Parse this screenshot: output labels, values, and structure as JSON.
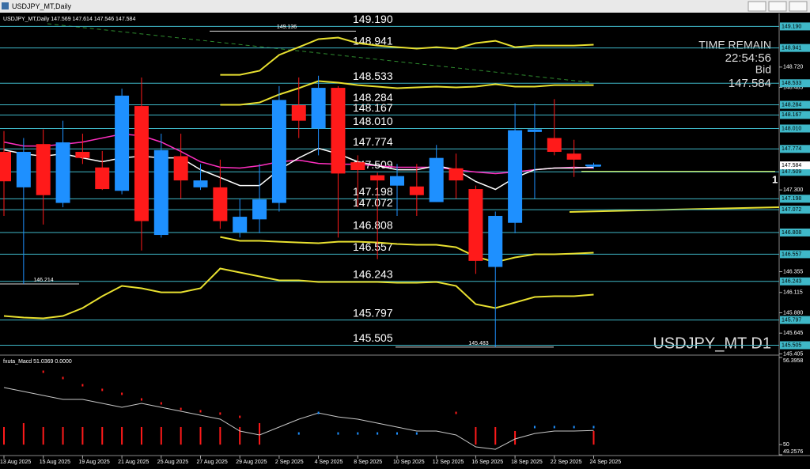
{
  "window_title": "USDJPY_MT,Daily",
  "chart_data": [
    {
      "type": "candlestick",
      "header": "USDJPY_MT,Daily 147.569 147.614 147.546 147.584",
      "categories": [
        "13 Aug 2025",
        null,
        "15 Aug 2025",
        null,
        "19 Aug 2025",
        null,
        "21 Aug 2025",
        null,
        "25 Aug 2025",
        null,
        "27 Aug 2025",
        null,
        "29 Aug 2025",
        null,
        "2 Sep 2025",
        null,
        "4 Sep 2025",
        null,
        "8 Sep 2025",
        null,
        "10 Sep 2025",
        null,
        "12 Sep 2025",
        null,
        "16 Sep 2025",
        null,
        "18 Sep 2025",
        null,
        "22 Sep 2025",
        null,
        "24 Sep 2025"
      ],
      "open": [
        147.74,
        147.33,
        147.83,
        147.15,
        147.74,
        147.56,
        147.29,
        148.27,
        146.78,
        147.69,
        147.33,
        147.33,
        146.81,
        146.96,
        147.15,
        148.28,
        148.01,
        148.48,
        147.62,
        147.47,
        147.35,
        147.34,
        147.16,
        147.55,
        147.31,
        146.41,
        146.92,
        147.97,
        147.9,
        147.72,
        147.569
      ],
      "high": [
        147.98,
        147.9,
        148.0,
        148.1,
        147.95,
        147.75,
        148.47,
        148.6,
        147.95,
        147.95,
        147.6,
        147.65,
        147.2,
        147.6,
        148.5,
        148.6,
        148.62,
        148.5,
        147.7,
        147.5,
        147.6,
        147.6,
        147.82,
        147.72,
        147.35,
        147.05,
        148.3,
        148.3,
        148.35,
        147.88,
        147.614
      ],
      "low": [
        147.0,
        146.214,
        146.9,
        147.1,
        147.6,
        147.3,
        147.25,
        146.6,
        146.75,
        147.2,
        147.3,
        146.85,
        146.75,
        146.8,
        147.05,
        147.9,
        147.7,
        146.75,
        147.1,
        146.5,
        147.0,
        147.0,
        147.16,
        147.2,
        146.33,
        145.483,
        146.8,
        147.2,
        147.7,
        147.45,
        147.546
      ],
      "close": [
        147.4,
        147.74,
        147.24,
        147.85,
        147.67,
        147.31,
        148.39,
        146.94,
        147.76,
        147.41,
        147.41,
        146.94,
        146.99,
        147.19,
        148.34,
        148.1,
        148.48,
        147.49,
        147.53,
        147.41,
        147.46,
        147.24,
        147.67,
        147.41,
        146.48,
        147.0,
        147.99,
        148.0,
        147.74,
        147.65,
        147.584
      ],
      "up_color": "#1e90ff",
      "down_color": "#ff1a1a",
      "ylim": [
        145.4,
        149.34
      ],
      "yticks": [
        {
          "value": 148.72,
          "label": "148.720"
        },
        148.485,
        {
          "value": 147.3,
          "label": "147.300"
        },
        146.355,
        146.115,
        {
          "value": 145.88,
          "label": "145.880"
        },
        145.645,
        145.405
      ],
      "levels": [
        {
          "value": 149.19,
          "label": "149.190"
        },
        148.941,
        148.533,
        148.284,
        148.167,
        {
          "value": 148.01,
          "label": "148.010"
        },
        147.774,
        147.509,
        147.198,
        147.072,
        146.808,
        146.557,
        146.243,
        145.797,
        145.505
      ],
      "level_color": "#3fb8c8",
      "extremes": [
        149.136,
        146.214,
        145.483
      ],
      "lines": [
        {
          "color": "#ff2fc0",
          "values": [
            147.854,
            147.808,
            147.808,
            147.827,
            147.854,
            147.9,
            147.946,
            147.927,
            147.854,
            147.744,
            147.626,
            147.562,
            147.553,
            147.58,
            147.626,
            147.644,
            147.607,
            147.598,
            147.598,
            147.58,
            147.562,
            147.562,
            147.562,
            147.534,
            147.507,
            147.489,
            147.507,
            147.534,
            147.553,
            147.562,
            147.553
          ]
        },
        {
          "color": "#ffffff",
          "values": [
            147.763,
            147.717,
            147.69,
            147.717,
            147.671,
            147.626,
            147.671,
            147.69,
            147.671,
            147.671,
            147.534,
            147.443,
            147.351,
            147.351,
            147.534,
            147.671,
            147.781,
            147.717,
            147.626,
            147.58,
            147.534,
            147.534,
            147.58,
            147.534,
            147.397,
            147.306,
            147.443,
            147.534,
            147.553,
            147.553,
            147.562
          ]
        },
        {
          "color": "#e8e030",
          "values": [
            null,
            null,
            null,
            null,
            null,
            null,
            null,
            null,
            null,
            null,
            null,
            148.631,
            148.631,
            148.677,
            148.86,
            148.951,
            149.043,
            149.061,
            148.997,
            148.969,
            148.951,
            148.933,
            148.951,
            148.933,
            148.997,
            149.024,
            148.951,
            148.969,
            148.969,
            148.969,
            148.979
          ]
        },
        {
          "color": "#e8e030",
          "values": [
            null,
            null,
            null,
            null,
            null,
            null,
            null,
            null,
            null,
            null,
            null,
            148.284,
            148.284,
            148.311,
            148.403,
            148.476,
            148.558,
            148.54,
            148.512,
            148.494,
            148.476,
            148.485,
            148.494,
            148.485,
            148.494,
            148.522,
            148.494,
            148.494,
            148.512,
            148.512,
            148.512
          ]
        },
        {
          "color": "#e8e030",
          "values": [
            null,
            null,
            null,
            null,
            null,
            null,
            null,
            null,
            null,
            null,
            null,
            146.757,
            146.712,
            146.712,
            146.702,
            146.693,
            146.684,
            146.702,
            146.702,
            146.693,
            146.675,
            146.666,
            146.666,
            146.638,
            146.529,
            146.465,
            146.52,
            146.556,
            146.556,
            146.565,
            146.575
          ]
        },
        {
          "color": "#e8e030",
          "values": [
            145.843,
            145.825,
            145.816,
            145.843,
            145.935,
            146.072,
            146.191,
            146.163,
            146.117,
            146.117,
            146.163,
            146.392,
            146.346,
            146.3,
            146.255,
            146.255,
            146.236,
            146.236,
            146.236,
            146.236,
            146.227,
            146.227,
            146.236,
            146.191,
            145.98,
            145.935,
            145.999,
            146.063,
            146.072,
            146.072,
            146.09
          ]
        }
      ],
      "bid": 147.584,
      "time_label": "TIME REMAIN",
      "time": "22:54:56",
      "bid_label": "Bid",
      "symbol_label": "USDJPY_MT D1",
      "marker": "1"
    },
    {
      "type": "oscillator",
      "title": "fxuta_Macd 51.0369 0.0000",
      "ylim": [
        49.2576,
        56.3958
      ],
      "yticks": [
        56.3958,
        50,
        49.2576
      ],
      "baseline": 50,
      "histogram": {
        "color": "#ff1a1a",
        "values": [
          51.29,
          51.58,
          51.29,
          51.29,
          51.29,
          51.29,
          51.29,
          51.29,
          51.29,
          51.29,
          51.29,
          51.29,
          51.29,
          51.58,
          null,
          null,
          null,
          null,
          null,
          null,
          null,
          null,
          null,
          null,
          51.29,
          51.29,
          51.0,
          null,
          null,
          null,
          51.0
        ]
      },
      "series": [
        {
          "color": "#c8c8c8",
          "values": [
            54.19,
            53.9,
            53.61,
            53.32,
            53.32,
            53.03,
            52.74,
            53.03,
            52.74,
            52.45,
            52.16,
            51.87,
            51.0,
            50.71,
            51.29,
            51.87,
            52.33,
            52.04,
            51.87,
            51.58,
            51.29,
            51.0,
            51.0,
            50.71,
            49.84,
            49.66,
            50.42,
            50.82,
            51.0,
            51.0,
            51.0369
          ]
        },
        {
          "values": [
            null,
            null,
            55.35,
            54.89,
            54.36,
            54.02,
            53.73,
            53.32,
            53.03,
            52.62,
            52.45,
            52.28,
            52.04,
            null,
            null,
            50.82,
            52.33,
            50.82,
            50.82,
            50.82,
            50.82,
            50.82,
            null,
            52.33,
            null,
            null,
            null,
            51.29,
            51.29,
            51.29,
            51.29
          ],
          "colors": [
            "#ff1a1a",
            "#ff1a1a",
            "#ff1a1a",
            "#ff1a1a",
            "#ff1a1a",
            "#ff1a1a",
            "#ff1a1a",
            "#ff1a1a",
            "#ff1a1a",
            "#ff1a1a",
            "#ff1a1a",
            "#ff1a1a",
            "#ff1a1a",
            "#1e90ff",
            "#1e90ff",
            "#1e90ff",
            "#1e90ff",
            "#1e90ff",
            "#1e90ff",
            "#1e90ff",
            "#1e90ff",
            "#1e90ff",
            "#1e90ff",
            "#ff1a1a",
            "#1e90ff",
            "#1e90ff",
            "#1e90ff",
            "#1e90ff",
            "#1e90ff",
            "#1e90ff",
            "#1e90ff"
          ]
        }
      ]
    }
  ]
}
